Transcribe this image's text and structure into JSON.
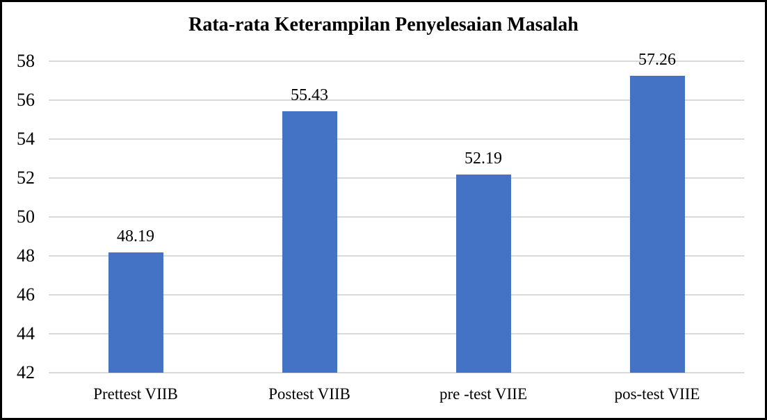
{
  "page": {
    "background": "#ffffff",
    "frame_border_color": "#000000"
  },
  "chart_data": {
    "type": "bar",
    "title": "Rata-rata Keterampilan Penyelesaian Masalah",
    "categories": [
      "Prettest VIIB",
      "Postest VIIB",
      "pre -test VIIE",
      "pos-test VIIE"
    ],
    "values": [
      48.19,
      55.43,
      52.19,
      57.26
    ],
    "data_labels": [
      "48.19",
      "55.43",
      "52.19",
      "57.26"
    ],
    "ylim": [
      42,
      58
    ],
    "yticks": [
      42,
      44,
      46,
      48,
      50,
      52,
      54,
      56,
      58
    ],
    "ytick_labels": [
      "42",
      "44",
      "46",
      "48",
      "50",
      "52",
      "54",
      "56",
      "58"
    ],
    "grid": true,
    "legend_position": "none",
    "xlabel": "",
    "ylabel": "",
    "bar_color": "#4472C4",
    "gridline_color": "#D9D9D9",
    "text_color": "#000000"
  }
}
